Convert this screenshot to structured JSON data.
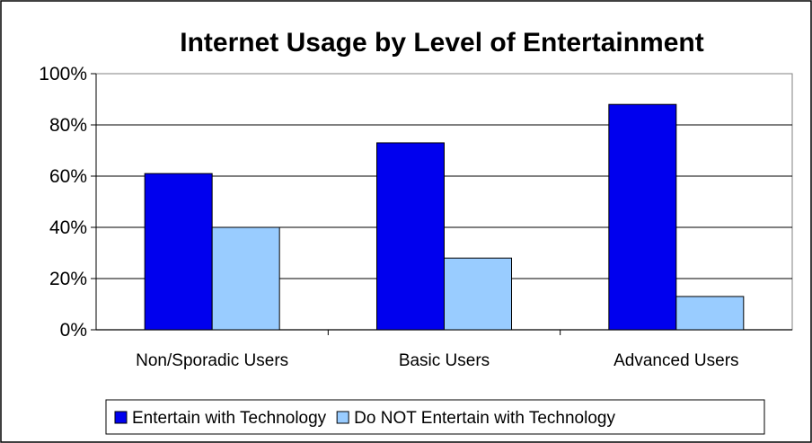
{
  "chart_data": {
    "type": "bar",
    "title": "Internet Usage by Level of Entertainment",
    "categories": [
      "Non/Sporadic Users",
      "Basic Users",
      "Advanced Users"
    ],
    "series": [
      {
        "name": "Entertain with Technology",
        "values": [
          61,
          73,
          88
        ],
        "color": "#0000ee"
      },
      {
        "name": "Do NOT Entertain with Technology",
        "values": [
          40,
          28,
          13
        ],
        "color": "#99ccff"
      }
    ],
    "ylim": [
      0,
      100
    ],
    "yticks": [
      "0%",
      "20%",
      "40%",
      "60%",
      "80%",
      "100%"
    ],
    "xlabel": "",
    "ylabel": "",
    "grid": true,
    "legend_position": "bottom"
  }
}
